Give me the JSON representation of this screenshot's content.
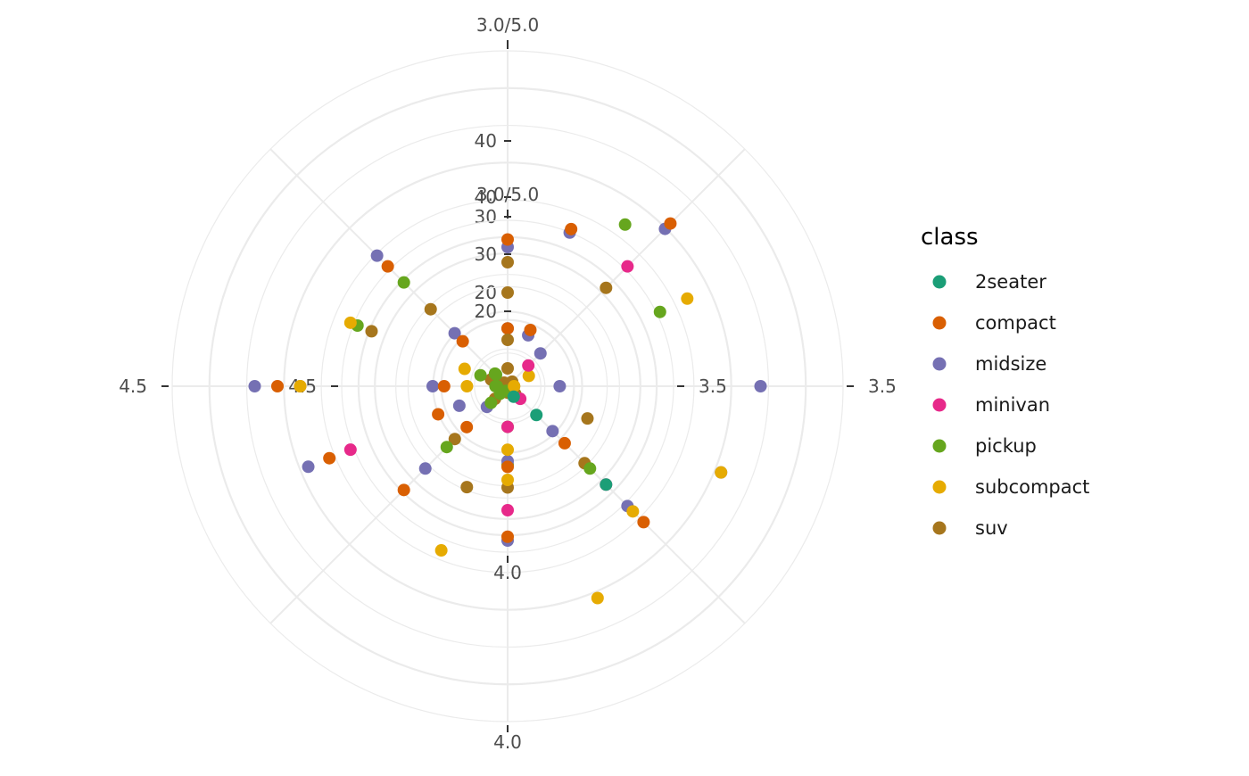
{
  "chart_data": {
    "type": "scatter",
    "coord": "polar",
    "grid": true,
    "legend_position": "right",
    "legend": {
      "title": "class",
      "entries": [
        {
          "name": "2seater",
          "color": "#1b9e77"
        },
        {
          "name": "compact",
          "color": "#d95f02"
        },
        {
          "name": "midsize",
          "color": "#7570b3"
        },
        {
          "name": "minivan",
          "color": "#e7298a"
        },
        {
          "name": "pickup",
          "color": "#66a61e"
        },
        {
          "name": "subcompact",
          "color": "#e6ab02"
        },
        {
          "name": "suv",
          "color": "#a6761d"
        }
      ]
    },
    "panels": [
      {
        "name": "outer",
        "r_limits": [
          10,
          45
        ],
        "r_ticks": [
          20,
          30,
          40
        ],
        "r_tick_labels": [
          "20",
          "30",
          "40"
        ],
        "theta_ticks": [
          "3.0/5.0",
          "3.5",
          "4.0",
          "4.5"
        ],
        "series": [
          {
            "name": "midsize",
            "points": [
              [
                0,
                26
              ],
              [
                22,
                29.5
              ],
              [
                45,
                37
              ],
              [
                90,
                41
              ],
              [
                112,
                38
              ],
              [
                135,
                30
              ],
              [
                180,
                28
              ],
              [
                225,
                23
              ],
              [
                248,
                36
              ],
              [
                270,
                41
              ],
              [
                315,
                32
              ]
            ]
          },
          {
            "name": "compact",
            "points": [
              [
                0,
                27
              ],
              [
                22,
                30
              ],
              [
                45,
                38
              ],
              [
                135,
                33
              ],
              [
                180,
                27.5
              ],
              [
                225,
                27
              ],
              [
                248,
                33
              ],
              [
                270,
                38
              ],
              [
                315,
                30
              ]
            ]
          },
          {
            "name": "suv",
            "points": [
              [
                0,
                24
              ],
              [
                0,
                20
              ],
              [
                45,
                26
              ],
              [
                112,
                19
              ],
              [
                135,
                22
              ],
              [
                180,
                21
              ],
              [
                202,
                22
              ],
              [
                225,
                17.5
              ],
              [
                270,
                35
              ],
              [
                292,
                27
              ],
              [
                315,
                22
              ]
            ]
          },
          {
            "name": "pickup",
            "points": [
              [
                36,
                34
              ],
              [
                64,
                30
              ],
              [
                135,
                23
              ],
              [
                180,
                18
              ],
              [
                225,
                19
              ],
              [
                292,
                29
              ],
              [
                315,
                27
              ]
            ]
          },
          {
            "name": "subcompact",
            "points": [
              [
                64,
                34
              ],
              [
                112,
                38
              ],
              [
                135,
                31
              ],
              [
                157,
                38
              ],
              [
                180,
                20
              ],
              [
                202,
                31
              ],
              [
                270,
                35
              ],
              [
                292,
                30
              ]
            ]
          },
          {
            "name": "minivan",
            "points": [
              [
                45,
                30
              ],
              [
                135,
                26
              ],
              [
                180,
                24
              ],
              [
                248,
                30
              ]
            ]
          },
          {
            "name": "2seater",
            "points": [
              [
                135,
                26
              ]
            ]
          }
        ]
      },
      {
        "name": "inner",
        "r_limits": [
          10,
          45
        ],
        "r_ticks": [
          20,
          30,
          40
        ],
        "r_tick_labels": [
          "20",
          "30",
          "40"
        ],
        "theta_ticks": [
          "3.0/5.0",
          "3.5",
          "4.0",
          "4.5"
        ],
        "series": [
          {
            "name": "midsize",
            "points": [
              [
                0,
                17
              ],
              [
                22,
                16.5
              ],
              [
                45,
                15
              ],
              [
                90,
                16
              ],
              [
                135,
                18
              ],
              [
                180,
                20
              ],
              [
                225,
                12
              ],
              [
                248,
                16
              ],
              [
                270,
                20
              ],
              [
                315,
                20
              ]
            ]
          },
          {
            "name": "compact",
            "points": [
              [
                0,
                17
              ],
              [
                22,
                17.5
              ],
              [
                135,
                21
              ],
              [
                180,
                21
              ],
              [
                225,
                17
              ],
              [
                248,
                20
              ],
              [
                270,
                18
              ],
              [
                315,
                18
              ]
            ]
          },
          {
            "name": "suv",
            "points": [
              [
                0,
                15
              ],
              [
                0,
                10
              ],
              [
                45,
                8
              ],
              [
                90,
                8
              ],
              [
                135,
                6
              ],
              [
                180,
                8
              ],
              [
                225,
                10
              ],
              [
                270,
                7
              ],
              [
                292,
                10
              ],
              [
                315,
                5
              ]
            ]
          },
          {
            "name": "pickup",
            "points": [
              [
                22,
                6
              ],
              [
                45,
                5
              ],
              [
                90,
                5
              ],
              [
                135,
                4
              ],
              [
                180,
                14
              ],
              [
                225,
                11
              ],
              [
                270,
                9
              ],
              [
                292,
                12
              ],
              [
                315,
                10
              ]
            ]
          },
          {
            "name": "subcompact",
            "points": [
              [
                64,
                11
              ],
              [
                90,
                8
              ],
              [
                180,
                18
              ],
              [
                270,
                14
              ],
              [
                292,
                15
              ]
            ]
          },
          {
            "name": "minivan",
            "points": [
              [
                45,
                12
              ],
              [
                135,
                10
              ],
              [
                180,
                14
              ]
            ]
          },
          {
            "name": "2seater",
            "points": [
              [
                150,
                9
              ],
              [
                135,
                14
              ]
            ]
          }
        ]
      }
    ]
  }
}
